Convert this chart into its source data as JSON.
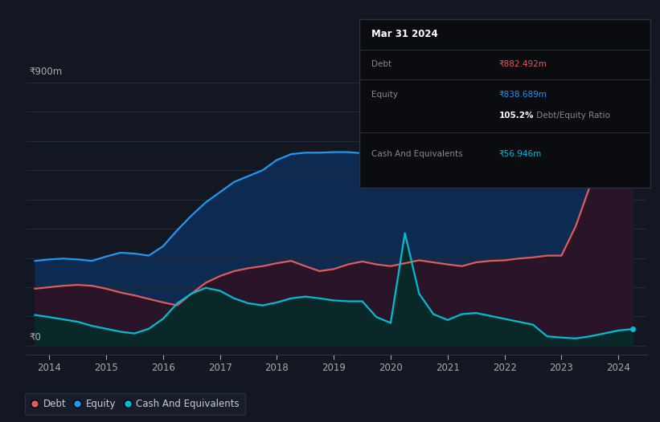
{
  "background_color": "#131722",
  "plot_bg_color": "#131722",
  "grid_color": "#222b3a",
  "debt_color": "#e05c5c",
  "equity_color": "#2196f3",
  "cash_color": "#00bcd4",
  "equity_fill_color": "#0d2a50",
  "debt_fill_color": "#2a1428",
  "cash_fill_color": "#0a2828",
  "ylabel_900": "₹900m",
  "ylabel_0": "₹0",
  "xlim_start": 2013.6,
  "xlim_end": 2024.5,
  "ylim_min": -30,
  "ylim_max": 980,
  "years": [
    2013.75,
    2014.0,
    2014.25,
    2014.5,
    2014.75,
    2015.0,
    2015.25,
    2015.5,
    2015.75,
    2016.0,
    2016.25,
    2016.5,
    2016.75,
    2017.0,
    2017.25,
    2017.5,
    2017.75,
    2018.0,
    2018.25,
    2018.5,
    2018.75,
    2019.0,
    2019.25,
    2019.5,
    2019.75,
    2020.0,
    2020.25,
    2020.5,
    2020.75,
    2021.0,
    2021.25,
    2021.5,
    2021.75,
    2022.0,
    2022.25,
    2022.5,
    2022.75,
    2023.0,
    2023.25,
    2023.5,
    2023.75,
    2024.0,
    2024.25
  ],
  "equity": [
    290,
    295,
    298,
    295,
    290,
    305,
    318,
    315,
    308,
    340,
    395,
    445,
    490,
    525,
    560,
    580,
    600,
    635,
    655,
    660,
    660,
    662,
    662,
    658,
    652,
    648,
    658,
    662,
    668,
    678,
    688,
    698,
    710,
    718,
    720,
    728,
    732,
    738,
    755,
    795,
    838,
    875,
    838
  ],
  "debt": [
    195,
    200,
    205,
    208,
    205,
    195,
    182,
    172,
    160,
    148,
    138,
    178,
    215,
    238,
    255,
    265,
    272,
    282,
    290,
    272,
    255,
    262,
    278,
    288,
    278,
    272,
    282,
    292,
    285,
    278,
    272,
    285,
    290,
    292,
    298,
    302,
    308,
    308,
    408,
    545,
    680,
    810,
    882
  ],
  "cash": [
    105,
    98,
    90,
    82,
    68,
    58,
    48,
    42,
    58,
    92,
    145,
    178,
    198,
    188,
    162,
    145,
    138,
    148,
    162,
    168,
    162,
    155,
    152,
    152,
    98,
    78,
    385,
    178,
    108,
    88,
    108,
    112,
    102,
    92,
    82,
    72,
    32,
    28,
    25,
    32,
    42,
    52,
    57
  ],
  "xticks": [
    2014,
    2015,
    2016,
    2017,
    2018,
    2019,
    2020,
    2021,
    2022,
    2023,
    2024
  ],
  "legend_items": [
    {
      "label": "Debt",
      "color": "#e05c5c"
    },
    {
      "label": "Equity",
      "color": "#2196f3"
    },
    {
      "label": "Cash And Equivalents",
      "color": "#00bcd4"
    }
  ],
  "tooltip": {
    "title": "Mar 31 2024",
    "debt_value": "₹882.492m",
    "equity_value": "₹838.689m",
    "ratio": "105.2%",
    "ratio_label": " Debt/Equity Ratio",
    "cash_label": "Cash And Equivalents",
    "cash_value": "₹56.946m"
  }
}
